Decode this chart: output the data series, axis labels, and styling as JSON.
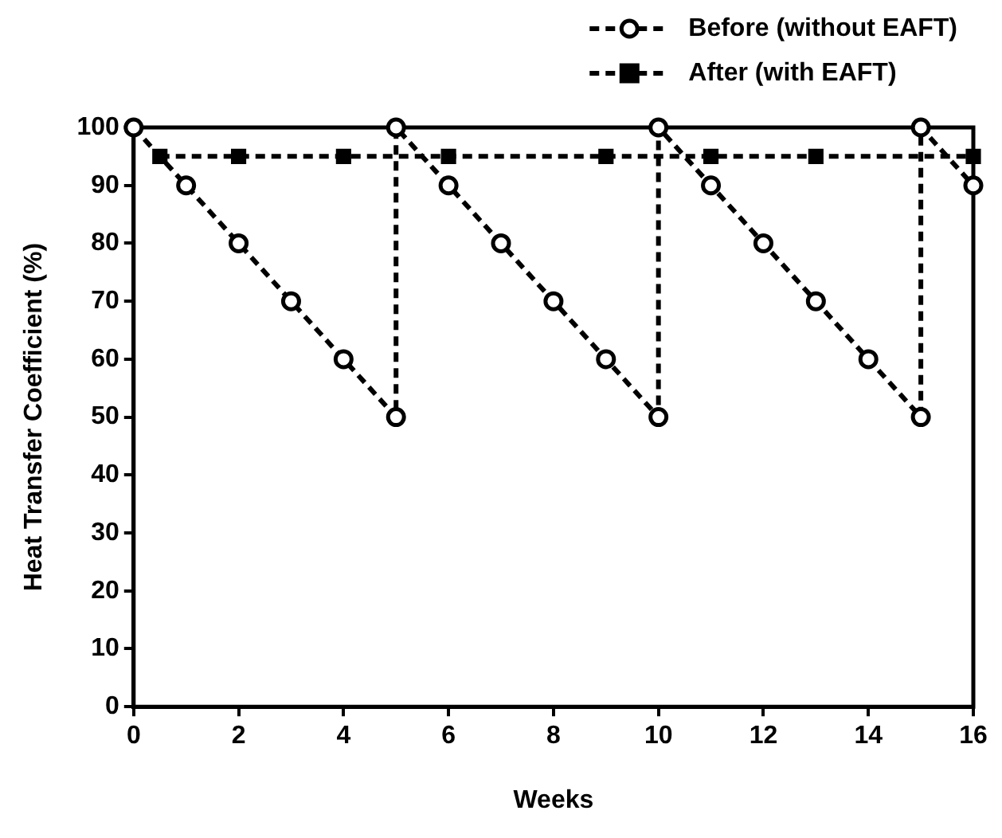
{
  "chart_data": {
    "type": "line",
    "xlabel": "Weeks",
    "ylabel": "Heat Transfer Coefficient (%)",
    "xlim": [
      0,
      16
    ],
    "xticks": [
      0,
      2,
      4,
      6,
      8,
      10,
      12,
      14,
      16
    ],
    "ylim": [
      0,
      100
    ],
    "yticks": [
      0,
      10,
      20,
      30,
      40,
      50,
      60,
      70,
      80,
      90,
      100
    ],
    "grid": false,
    "legend": "top right",
    "series": [
      {
        "name": "Before (without EAFT)",
        "color": "#000000",
        "marker": "circle",
        "line_style": "dashed",
        "x": [
          0,
          1,
          2,
          3,
          4,
          5,
          5,
          6,
          7,
          8,
          9,
          10,
          10,
          11,
          12,
          13,
          14,
          15,
          15,
          16
        ],
        "values": [
          100,
          90,
          80,
          70,
          60,
          50,
          100,
          90,
          80,
          70,
          60,
          50,
          100,
          90,
          80,
          70,
          60,
          50,
          100,
          90
        ]
      },
      {
        "name": "After (with EAFT)",
        "color": "#000000",
        "marker": "square",
        "line_style": "dashed",
        "x": [
          0.5,
          2,
          4,
          6,
          9,
          11,
          13,
          16
        ],
        "values": [
          95,
          95,
          95,
          95,
          95,
          95,
          95,
          95
        ]
      }
    ]
  }
}
